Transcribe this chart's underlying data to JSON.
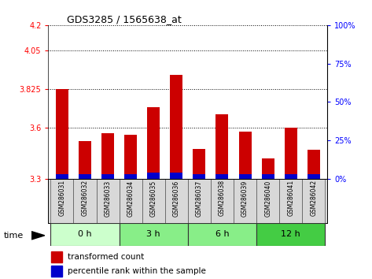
{
  "title": "GDS3285 / 1565638_at",
  "samples": [
    "GSM286031",
    "GSM286032",
    "GSM286033",
    "GSM286034",
    "GSM286035",
    "GSM286036",
    "GSM286037",
    "GSM286038",
    "GSM286039",
    "GSM286040",
    "GSM286041",
    "GSM286042"
  ],
  "transformed_counts": [
    3.825,
    3.52,
    3.565,
    3.555,
    3.72,
    3.91,
    3.475,
    3.675,
    3.575,
    3.42,
    3.6,
    3.47
  ],
  "percentile_ranks": [
    3,
    3,
    3,
    3,
    4,
    4,
    3,
    3,
    3,
    3,
    3,
    3
  ],
  "ymin": 3.3,
  "ymax": 4.2,
  "yticks_left": [
    3.3,
    3.6,
    3.825,
    4.05,
    4.2
  ],
  "yticks_right": [
    0,
    25,
    50,
    75,
    100
  ],
  "bar_color_red": "#cc0000",
  "bar_color_blue": "#0000cc",
  "group_labels": [
    "0 h",
    "3 h",
    "6 h",
    "12 h"
  ],
  "group_starts": [
    0,
    3,
    6,
    9
  ],
  "group_ends": [
    3,
    6,
    9,
    12
  ],
  "group_colors": [
    "#ccffcc",
    "#88ee88",
    "#88ee88",
    "#44cc44"
  ],
  "bar_width": 0.55
}
